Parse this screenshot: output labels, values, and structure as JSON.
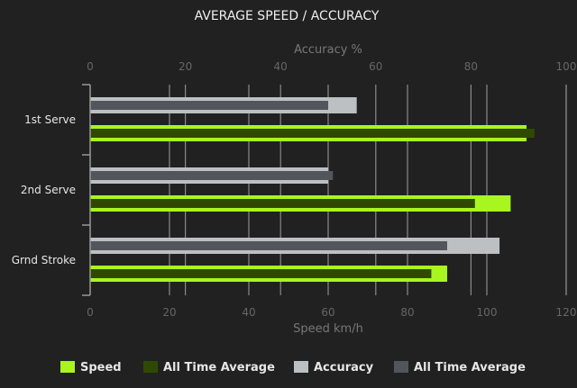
{
  "chart_data": {
    "type": "bar",
    "orientation": "horizontal",
    "title": "AVERAGE SPEED / ACCURACY",
    "categories": [
      "1st Serve",
      "2nd Serve",
      "Grnd Stroke"
    ],
    "x_axis_top": {
      "label": "Accuracy %",
      "range": [
        0,
        100
      ],
      "ticks": [
        0,
        20,
        40,
        60,
        80,
        100
      ]
    },
    "x_axis_bottom": {
      "label": "Speed km/h",
      "range": [
        0,
        120
      ],
      "ticks": [
        0,
        20,
        40,
        60,
        80,
        100,
        120
      ]
    },
    "grid": true,
    "legend_position": "bottom",
    "series": [
      {
        "name": "Speed",
        "axis": "bottom",
        "color": "#a8f520",
        "values": [
          110,
          106,
          90
        ]
      },
      {
        "name": "All Time Average",
        "axis": "bottom",
        "color": "#2f4a00",
        "values": [
          112,
          97,
          86
        ]
      },
      {
        "name": "Accuracy",
        "axis": "top",
        "color": "#bcc0c2",
        "values": [
          56,
          50,
          86
        ]
      },
      {
        "name": "All Time Average",
        "axis": "top",
        "color": "#52565c",
        "values": [
          50,
          51,
          75
        ]
      }
    ]
  }
}
